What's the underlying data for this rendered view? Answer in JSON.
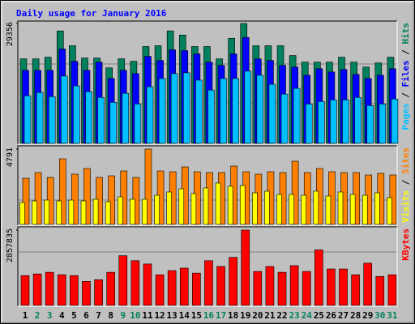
{
  "chart_data": [
    {
      "type": "bar",
      "title": "Daily usage for January 2016",
      "ylim": [
        0,
        29356
      ],
      "yticks": [
        29356
      ],
      "legend_separator": " / ",
      "series": [
        {
          "name": "Hits",
          "color": "#00805c",
          "values": [
            20703,
            20703,
            21105,
            27537,
            23919,
            20904,
            20904,
            18492,
            20703,
            20100,
            23718,
            23919,
            27537,
            26532,
            23718,
            23718,
            20703,
            25728,
            29356,
            23919,
            23919,
            23919,
            21507,
            19899,
            19899,
            19899,
            21105,
            19899,
            18693,
            19698,
            21105
          ]
        },
        {
          "name": "Files",
          "color": "#0000ff",
          "values": [
            17889,
            17889,
            17889,
            23115,
            20100,
            17889,
            19899,
            15879,
            17889,
            17085,
            21306,
            20301,
            22914,
            22713,
            21909,
            19899,
            19095,
            21909,
            25929,
            20703,
            20301,
            19095,
            18693,
            16683,
            18291,
            17487,
            18090,
            16884,
            15879,
            16683,
            18291
          ]
        },
        {
          "name": "Pages",
          "color": "#00c0ff",
          "values": [
            11658,
            12462,
            11457,
            16482,
            14070,
            12663,
            11256,
            10050,
            12261,
            9648,
            13869,
            15879,
            17085,
            17286,
            15477,
            13065,
            15879,
            15879,
            17688,
            16683,
            14472,
            12060,
            13467,
            9648,
            10251,
            10653,
            10653,
            11256,
            9246,
            9648,
            10854
          ]
        }
      ]
    },
    {
      "type": "bar",
      "ylim": [
        0,
        4791
      ],
      "yticks": [
        4791
      ],
      "legend_separator": " / ",
      "series": [
        {
          "name": "Sites",
          "color": "#ff8000",
          "values": [
            2936,
            3296,
            2987,
            4172,
            3193,
            3554,
            2987,
            3090,
            3399,
            2987,
            4791,
            3399,
            3348,
            3657,
            3348,
            3296,
            3296,
            3708,
            3348,
            3193,
            3348,
            3296,
            4017,
            3296,
            3554,
            3348,
            3296,
            3296,
            3142,
            3245,
            3142
          ]
        },
        {
          "name": "Visits",
          "color": "#ffff00",
          "values": [
            1391,
            1494,
            1545,
            1494,
            1545,
            1494,
            1597,
            1442,
            1751,
            1597,
            1597,
            1854,
            2060,
            2266,
            1957,
            2318,
            2627,
            2421,
            2472,
            2009,
            2112,
            1906,
            1906,
            1854,
            2112,
            1803,
            2060,
            1906,
            1854,
            2009,
            1700
          ]
        }
      ]
    },
    {
      "type": "bar",
      "ylim": [
        0,
        2857835
      ],
      "yticks": [
        2857835
      ],
      "categories": [
        "1",
        "2",
        "3",
        "4",
        "5",
        "6",
        "7",
        "8",
        "9",
        "10",
        "11",
        "12",
        "13",
        "14",
        "15",
        "16",
        "17",
        "18",
        "19",
        "20",
        "21",
        "22",
        "23",
        "24",
        "25",
        "26",
        "27",
        "28",
        "29",
        "30",
        "31"
      ],
      "category_colors": [
        "#000000",
        "#00805c",
        "#00805c",
        "#000000",
        "#000000",
        "#000000",
        "#000000",
        "#000000",
        "#00805c",
        "#00805c",
        "#000000",
        "#000000",
        "#000000",
        "#000000",
        "#000000",
        "#00805c",
        "#00805c",
        "#000000",
        "#000000",
        "#000000",
        "#000000",
        "#000000",
        "#00805c",
        "#00805c",
        "#000000",
        "#000000",
        "#000000",
        "#000000",
        "#000000",
        "#00805c",
        "#00805c"
      ],
      "series": [
        {
          "name": "KBytes",
          "color": "#ff0000",
          "values": [
            1130580,
            1193390,
            1256200,
            1161985,
            1130580,
            910745,
            973555,
            1256200,
            1884300,
            1695870,
            1570250,
            1161985,
            1319010,
            1413225,
            1224795,
            1695870,
            1476035,
            1821490,
            2857835,
            1287605,
            1476035,
            1256200,
            1507440,
            1287605,
            2104135,
            1381820,
            1381820,
            1161985,
            1601655,
            1099175,
            1161985
          ]
        }
      ]
    }
  ]
}
